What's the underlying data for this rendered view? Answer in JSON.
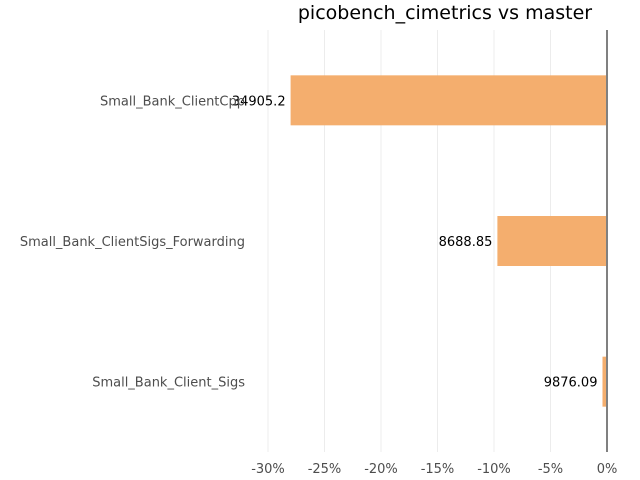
{
  "chart_data": {
    "type": "bar",
    "orientation": "horizontal",
    "title": "picobench_cimetrics vs master",
    "xlabel": "",
    "ylabel": "",
    "categories": [
      "Small_Bank_ClientCpp",
      "Small_Bank_ClientSigs_Forwarding",
      "Small_Bank_Client_Sigs"
    ],
    "values": [
      -28.0,
      -9.7,
      -0.4
    ],
    "data_labels": [
      "34905.2",
      "8688.85",
      "9876.09"
    ],
    "xlim": [
      -30,
      0
    ],
    "xticks": [
      -30,
      -25,
      -20,
      -15,
      -10,
      -5,
      0
    ],
    "xtick_labels": [
      "-30%",
      "-25%",
      "-20%",
      "-15%",
      "-10%",
      "-5%",
      "0%"
    ],
    "grid": true,
    "legend": "none",
    "colors": {
      "bar": "#f4ae6e",
      "zero_line": "#808080",
      "grid": "#ececec"
    }
  }
}
